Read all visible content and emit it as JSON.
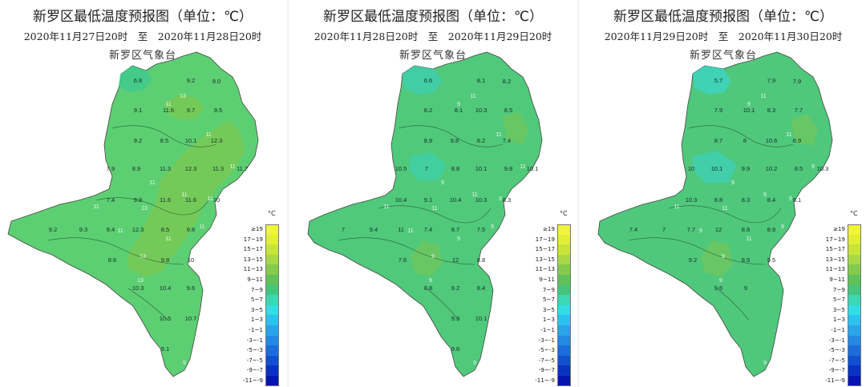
{
  "colors": {
    "ge19": "#f0f53c",
    "17~19": "#e1ef37",
    "15~17": "#c8e43b",
    "13~15": "#a9d845",
    "11~13": "#84cb4d",
    "9~11": "#61c159",
    "7~9": "#45c47d",
    "5~7": "#3cd7b3",
    "3~5": "#33dce6",
    "1~3": "#2dc2ee",
    "-1~1": "#2aa5ea",
    "-3~-1": "#2489e3",
    "-5~-3": "#1c6ddc",
    "-7~-5": "#1350d0",
    "-9~-7": "#0a33c2",
    "-11~-9": "#0416ad"
  },
  "legend": {
    "unit": "°C",
    "entries": [
      "≥19",
      "17~19",
      "15~17",
      "13~15",
      "11~13",
      "9~11",
      "7~9",
      "5~7",
      "3~5",
      "1~3",
      "-1~1",
      "-3~-1",
      "-5~-3",
      "-7~-5",
      "-9~-7",
      "-11~-9"
    ]
  },
  "maps": [
    {
      "title": "新罗区最低温度预报图（单位：℃）",
      "date_range": "2020年11月27日20时　至　2020年11月28日20时",
      "station": "新罗区气象台",
      "values": [
        "6.8",
        "9.2",
        "9.0",
        "9.1",
        "11.6",
        "9.7",
        "9.5",
        "8.5",
        "10.1",
        "12.3",
        "9.2",
        "7.9",
        "8.9",
        "11.3",
        "12.3",
        "11.3",
        "11.7",
        "7.4",
        "9.8",
        "11.6",
        "11.6",
        "10",
        "9.2",
        "9.3",
        "9.4",
        "12.3",
        "8.5",
        "9.8",
        "8.6",
        "9.8",
        "10",
        "10.3",
        "10.4",
        "9.6",
        "10.5",
        "10.7",
        "9.1"
      ],
      "isolabels": [
        "11",
        "13",
        "11",
        "11",
        "13",
        "11",
        "11",
        "13",
        "11",
        "11",
        "13",
        "11",
        "11",
        "9",
        "11"
      ]
    },
    {
      "title": "新罗区最低温度预报图（单位：℃）",
      "date_range": "2020年11月28日20时　至　2020年11月29日20时",
      "station": "新罗区气象台",
      "values": [
        "6.6",
        "8.1",
        "8.2",
        "8.2",
        "8.1",
        "10.3",
        "8.5",
        "9.8",
        "8.2",
        "7.4",
        "8.9",
        "10.5",
        "7",
        "8.8",
        "10.1",
        "9.8",
        "10.1",
        "10.4",
        "9.1",
        "10.4",
        "10.3",
        "8.3",
        "7",
        "9.4",
        "11",
        "7.4",
        "8.7",
        "7.5",
        "7.6",
        "12",
        "8.8",
        "8.8",
        "9.2",
        "8.4",
        "9.9",
        "10.1",
        "9.6"
      ],
      "isolabels": [
        "9",
        "11",
        "11",
        "11",
        "11",
        "11",
        "9",
        "9",
        "9",
        "9",
        "9",
        "11",
        "11",
        "9",
        "9"
      ]
    },
    {
      "title": "新罗区最低温度预报图（单位：℃）",
      "date_range": "2020年11月29日20时　至　2020年11月30日20时",
      "station": "新罗区气象台",
      "values": [
        "5.7",
        "7.9",
        "7.9",
        "7.9",
        "10.1",
        "8.3",
        "7.7",
        "8",
        "10.6",
        "6.9",
        "8.7",
        "10",
        "10.1",
        "9.9",
        "10.2",
        "8.5",
        "10.3",
        "10.3",
        "8.8",
        "8.3",
        "8.4",
        "9.1",
        "7.4",
        "7",
        "7.7",
        "12",
        "8.8",
        "8.9",
        "9.2",
        "8.5",
        "9.5",
        "9.6",
        "9"
      ],
      "isolabels": [
        "9",
        "11",
        "11",
        "9",
        "11",
        "9",
        "9",
        "9",
        "11",
        "9",
        "9",
        "9",
        "11",
        "9",
        "9"
      ]
    }
  ]
}
